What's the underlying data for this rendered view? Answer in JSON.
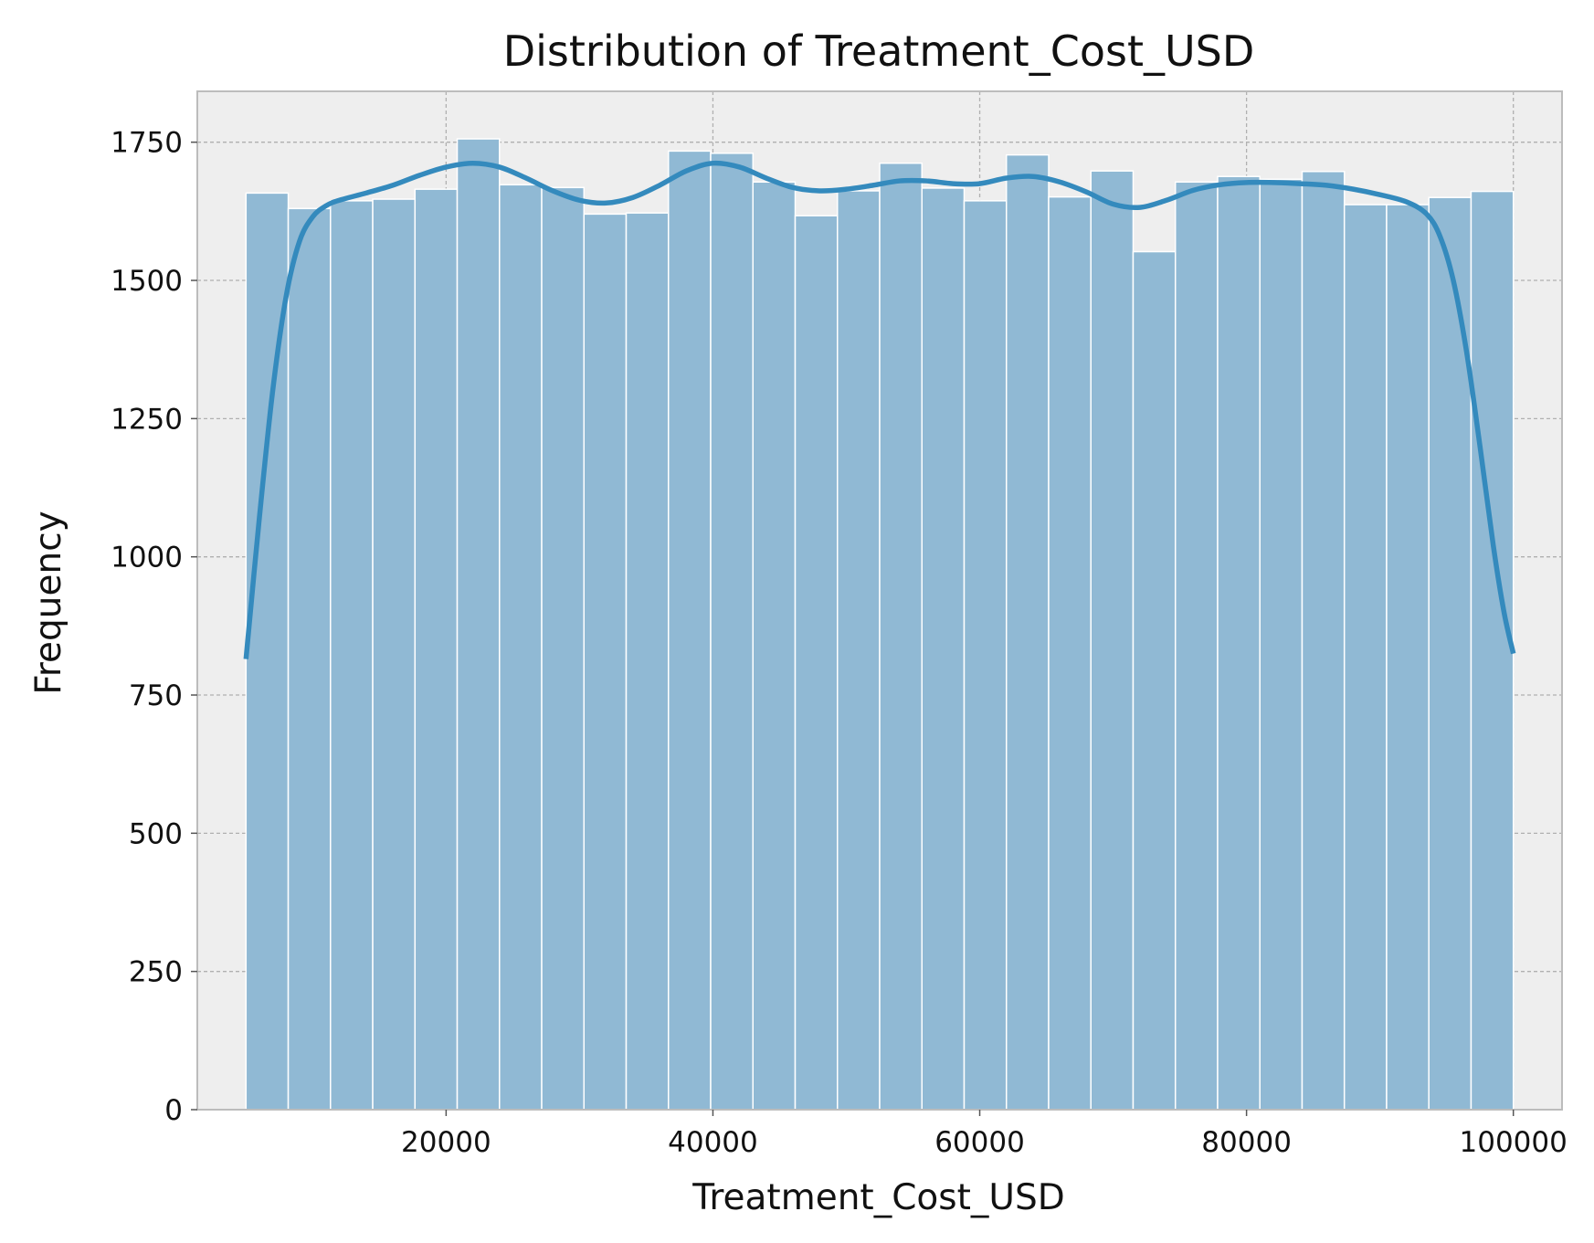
{
  "chart_data": {
    "type": "bar",
    "title": "Distribution of Treatment_Cost_USD",
    "xlabel": "Treatment_Cost_USD",
    "ylabel": "Frequency",
    "xlim": [
      1350,
      103650
    ],
    "ylim": [
      0,
      1842
    ],
    "x_ticks": [
      20000,
      40000,
      60000,
      80000,
      100000
    ],
    "x_tick_labels": [
      "20000",
      "40000",
      "60000",
      "80000",
      "100000"
    ],
    "y_ticks": [
      0,
      250,
      500,
      750,
      1000,
      1250,
      1500,
      1750
    ],
    "y_tick_labels": [
      "0",
      "250",
      "500",
      "750",
      "1000",
      "1250",
      "1500",
      "1750"
    ],
    "grid": true,
    "bin_edges": [
      5000,
      8167,
      11333,
      14500,
      17667,
      20833,
      24000,
      27167,
      30333,
      33500,
      36667,
      39833,
      43000,
      46167,
      49333,
      52500,
      55667,
      58833,
      62000,
      65167,
      68333,
      71500,
      74667,
      77833,
      81000,
      84167,
      87333,
      90500,
      93667,
      96833,
      100000
    ],
    "values": [
      1658,
      1630,
      1644,
      1647,
      1665,
      1756,
      1673,
      1668,
      1620,
      1622,
      1734,
      1730,
      1678,
      1617,
      1662,
      1712,
      1667,
      1644,
      1727,
      1651,
      1698,
      1552,
      1678,
      1688,
      1683,
      1697,
      1637,
      1637,
      1650,
      1661
    ],
    "kde": {
      "x": [
        5000,
        6000,
        7000,
        8000,
        9000,
        10000,
        11000,
        12000,
        14000,
        16000,
        18000,
        20000,
        22000,
        24000,
        26000,
        28000,
        30000,
        32000,
        34000,
        36000,
        38000,
        40000,
        42000,
        44000,
        46000,
        48000,
        50000,
        52000,
        54000,
        56000,
        58000,
        60000,
        62000,
        64000,
        66000,
        68000,
        70000,
        72000,
        74000,
        76000,
        78000,
        80000,
        82000,
        84000,
        86000,
        88000,
        90000,
        92000,
        93500,
        94500,
        95500,
        96500,
        97500,
        98500,
        99300,
        100000
      ],
      "y": [
        815,
        1070,
        1300,
        1470,
        1570,
        1615,
        1635,
        1645,
        1658,
        1672,
        1690,
        1705,
        1712,
        1705,
        1685,
        1662,
        1645,
        1640,
        1650,
        1672,
        1698,
        1712,
        1705,
        1685,
        1668,
        1662,
        1665,
        1672,
        1680,
        1680,
        1675,
        1675,
        1685,
        1688,
        1678,
        1660,
        1638,
        1632,
        1645,
        1663,
        1673,
        1677,
        1677,
        1675,
        1672,
        1665,
        1655,
        1642,
        1620,
        1580,
        1500,
        1370,
        1200,
        1020,
        900,
        825
      ]
    },
    "colors": {
      "bar_fill": "#90b9d4",
      "bar_edge": "#ffffff",
      "kde_line": "#348abd",
      "plot_background": "#eeeeee",
      "plot_border": "#bcbcbc",
      "grid": "#b0b0b0",
      "page_background": "#ffffff"
    }
  }
}
